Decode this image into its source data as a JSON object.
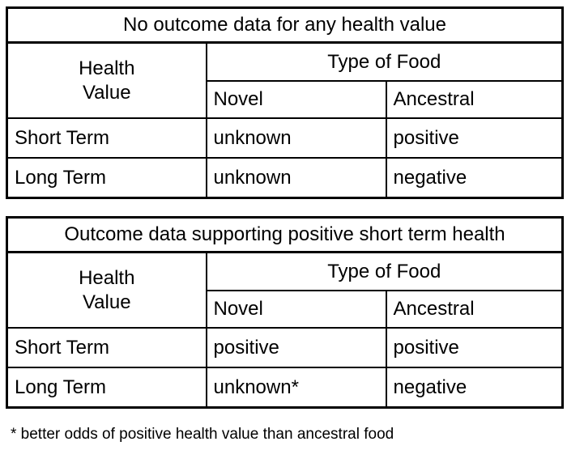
{
  "tables": [
    {
      "title": "No outcome data for any health value",
      "corner_label": "Health\nValue",
      "col_group": "Type of Food",
      "cols": [
        "Novel",
        "Ancestral"
      ],
      "rows": [
        {
          "label": "Short Term",
          "cells": [
            "unknown",
            "positive"
          ]
        },
        {
          "label": "Long Term",
          "cells": [
            "unknown",
            "negative"
          ]
        }
      ]
    },
    {
      "title": "Outcome data supporting positive short term health",
      "corner_label": "Health\nValue",
      "col_group": "Type of Food",
      "cols": [
        "Novel",
        "Ancestral"
      ],
      "rows": [
        {
          "label": "Short Term",
          "cells": [
            "positive",
            "positive"
          ]
        },
        {
          "label": "Long Term",
          "cells": [
            "unknown*",
            "negative"
          ]
        }
      ]
    }
  ],
  "footnote": "* better odds of positive health value than ancestral food",
  "colors": {
    "border": "#000000",
    "background": "#ffffff",
    "text": "#000000"
  }
}
